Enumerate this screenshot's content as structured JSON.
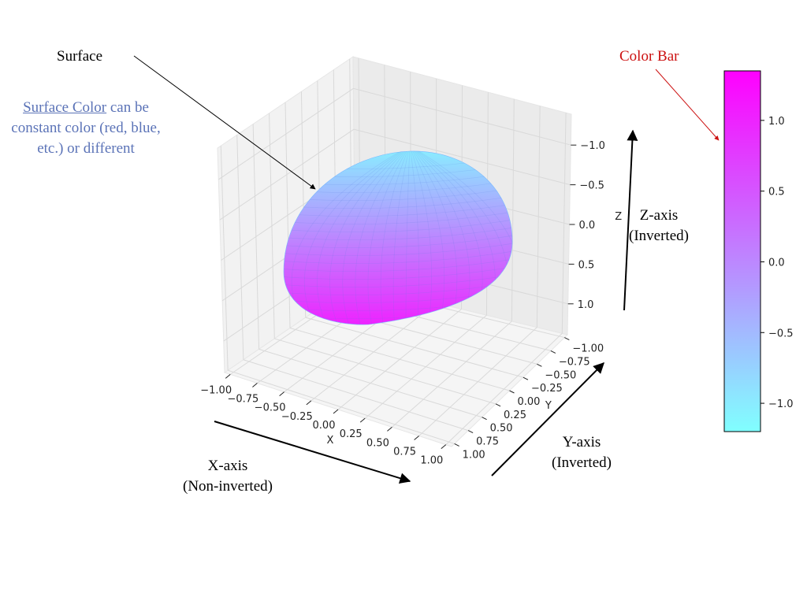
{
  "chart_data": {
    "type": "surface3d",
    "surface": {
      "shape": "ellipsoid",
      "x_range": [
        -0.7,
        0.7
      ],
      "y_range": [
        -0.7,
        0.7
      ],
      "z_range": [
        -1.0,
        1.0
      ],
      "colormap": "cool",
      "color_by": "z"
    },
    "axes": {
      "x": {
        "label": "X",
        "inverted": false,
        "ticks": [
          -1.0,
          -0.75,
          -0.5,
          -0.25,
          0.0,
          0.25,
          0.5,
          0.75,
          1.0
        ],
        "tick_labels": [
          "−1.00",
          "−0.75",
          "−0.50",
          "−0.25",
          "0.00",
          "0.25",
          "0.50",
          "0.75",
          "1.00"
        ]
      },
      "y": {
        "label": "Y",
        "inverted": true,
        "ticks": [
          -1.0,
          -0.75,
          -0.5,
          -0.25,
          0.0,
          0.25,
          0.5,
          0.75,
          1.0
        ],
        "tick_labels": [
          "−1.00",
          "−0.75",
          "−0.50",
          "−0.25",
          "0.00",
          "0.25",
          "0.50",
          "0.75",
          "1.00"
        ]
      },
      "z": {
        "label": "Z",
        "inverted": true,
        "ticks": [
          -1.0,
          -0.5,
          0.0,
          0.5,
          1.0
        ],
        "tick_labels": [
          "−1.0",
          "−0.5",
          "0.0",
          "0.5",
          "1.0"
        ]
      }
    },
    "colorbar": {
      "range": [
        -1.2,
        1.35
      ],
      "ticks": [
        1.0,
        0.5,
        0.0,
        -0.5,
        -1.0
      ],
      "tick_labels": [
        "1.0",
        "0.5",
        "0.0",
        "−0.5",
        "−1.0"
      ],
      "color_low": "#80ffff",
      "color_high": "#ff00ff"
    },
    "grid": true
  },
  "annotations": {
    "surface": "Surface",
    "surface_color_highlight": "Surface Color",
    "surface_color_rest": " can be constant color (red, blue, etc.) or different",
    "color_bar": "Color Bar",
    "z_axis_line1": "Z-axis",
    "z_axis_line2": "(Inverted)",
    "y_axis_line1": "Y-axis",
    "y_axis_line2": "(Inverted)",
    "x_axis_line1": "X-axis",
    "x_axis_line2": "(Non-inverted)"
  },
  "colors": {
    "surface_color_note": "#5b73b7",
    "color_bar_label": "#cc1111",
    "pane": "#f2f2f2",
    "grid": "#d9d9d9"
  }
}
